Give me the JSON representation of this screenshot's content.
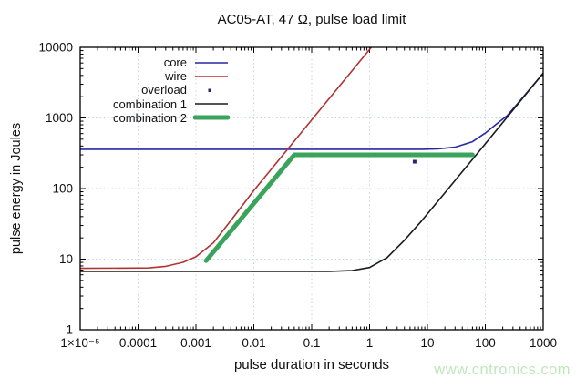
{
  "title": "AC05-AT, 47 Ω, pulse load limit",
  "watermark": {
    "text": "www.cntronics.com",
    "color": "#bfe7bb"
  },
  "colors": {
    "axis": "#000000",
    "grid": "#c9d3de",
    "text": "#111111"
  },
  "chart_data": {
    "type": "line",
    "title": "AC05-AT, 47 Ω, pulse load limit",
    "xlabel": "pulse duration in seconds",
    "ylabel": "pulse energy in Joules",
    "x_scale": "log",
    "y_scale": "log",
    "xlim": [
      1e-05,
      1000
    ],
    "ylim": [
      1,
      10000
    ],
    "grid": true,
    "legend_position": "top-left-inside",
    "x_tick_values": [
      1e-05,
      0.0001,
      0.001,
      0.01,
      0.1,
      1,
      10,
      100,
      1000
    ],
    "x_tick_labels": [
      "1×10⁻⁵",
      "0.0001",
      "0.001",
      "0.01",
      "0.1",
      "1",
      "10",
      "100",
      "1000"
    ],
    "y_tick_values": [
      1,
      10,
      100,
      1000,
      10000
    ],
    "y_tick_labels": [
      "1",
      "10",
      "100",
      "1000",
      "10000"
    ],
    "series": [
      {
        "name": "core",
        "type": "line",
        "color": "#2929a3",
        "width": 1.6,
        "points": [
          [
            1e-05,
            360
          ],
          [
            8,
            360
          ],
          [
            15,
            365
          ],
          [
            30,
            385
          ],
          [
            60,
            460
          ],
          [
            100,
            610
          ],
          [
            150,
            800
          ],
          [
            240,
            1080
          ],
          [
            400,
            1760
          ],
          [
            700,
            3050
          ],
          [
            1000,
            4300
          ]
        ]
      },
      {
        "name": "wire",
        "type": "line",
        "color": "#b23232",
        "width": 1.6,
        "points": [
          [
            1e-05,
            7.4
          ],
          [
            0.00015,
            7.5
          ],
          [
            0.0003,
            7.9
          ],
          [
            0.0006,
            9.0
          ],
          [
            0.001,
            10.8
          ],
          [
            0.002,
            17
          ],
          [
            0.004,
            35
          ],
          [
            0.01,
            94
          ],
          [
            0.1,
            940
          ],
          [
            1.07,
            10000
          ]
        ]
      },
      {
        "name": "overload",
        "type": "marker",
        "marker": "square",
        "color": "#252570",
        "size": 4,
        "points": [
          [
            6,
            240
          ]
        ]
      },
      {
        "name": "combination 1",
        "type": "line",
        "color": "#1a1a1a",
        "width": 1.6,
        "points": [
          [
            1e-05,
            6.7
          ],
          [
            0.2,
            6.7
          ],
          [
            0.5,
            6.9
          ],
          [
            1,
            7.6
          ],
          [
            2,
            10.5
          ],
          [
            4,
            18.5
          ],
          [
            8,
            35
          ],
          [
            20,
            87
          ],
          [
            100,
            430
          ],
          [
            1000,
            4300
          ]
        ]
      },
      {
        "name": "combination 2",
        "type": "line",
        "color": "#3aa35c",
        "width": 5,
        "points": [
          [
            0.0015,
            9.5
          ],
          [
            0.05,
            300
          ],
          [
            60,
            300
          ]
        ]
      }
    ]
  }
}
